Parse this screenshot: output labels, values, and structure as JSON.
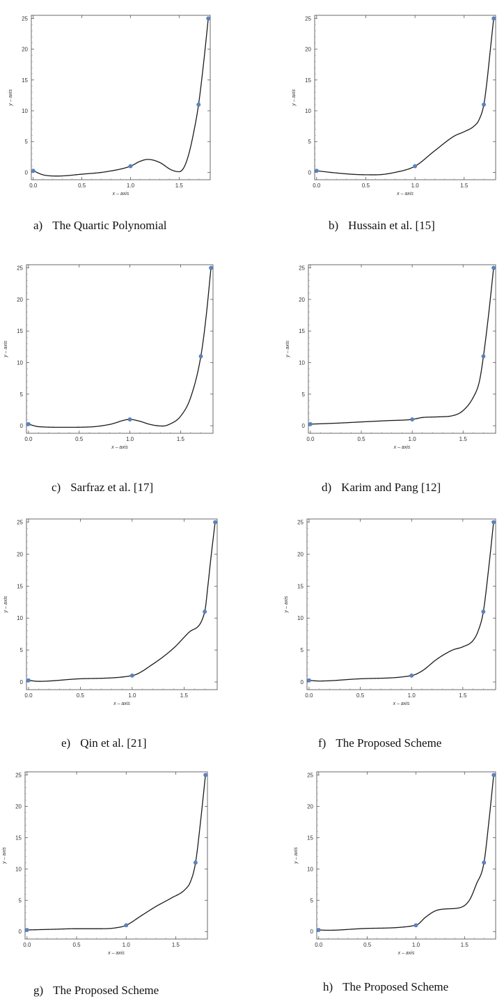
{
  "figure": {
    "data_points": {
      "x": [
        0.0,
        1.0,
        1.7,
        1.8
      ],
      "y": [
        0.25,
        1.0,
        11.0,
        25.0
      ]
    },
    "xlabel": "x – axis",
    "ylabel": "y – axis",
    "xticks": [
      "0.0",
      "0.5",
      "1.0",
      "1.5"
    ],
    "yticks": [
      "0",
      "5",
      "10",
      "15",
      "20",
      "25"
    ],
    "colors": {
      "curve": "#1a1a1a",
      "points": "#5b84c4"
    }
  },
  "chart_data": [
    {
      "type": "line",
      "panel": "a",
      "caption_letter": "a)",
      "caption_text": "The Quartic Polynomial",
      "xlim": [
        -0.02,
        1.82
      ],
      "ylim": [
        -1.2,
        25.5
      ],
      "x": [
        0.0,
        0.1,
        0.25,
        0.5,
        0.75,
        1.0,
        1.1,
        1.18,
        1.3,
        1.42,
        1.5,
        1.55,
        1.6,
        1.65,
        1.7,
        1.75,
        1.8
      ],
      "y": [
        0.25,
        -0.4,
        -0.6,
        -0.3,
        0.1,
        1.0,
        1.8,
        2.1,
        1.6,
        0.4,
        0.1,
        0.8,
        3.0,
        6.5,
        11.0,
        17.5,
        25.0
      ]
    },
    {
      "type": "line",
      "panel": "b",
      "caption_letter": "b)",
      "caption_text": "Hussain et al. [15]",
      "xlim": [
        -0.02,
        1.82
      ],
      "ylim": [
        -1.2,
        25.5
      ],
      "x": [
        0.0,
        0.2,
        0.4,
        0.6,
        0.8,
        1.0,
        1.2,
        1.4,
        1.5,
        1.6,
        1.65,
        1.7,
        1.73,
        1.76,
        1.8
      ],
      "y": [
        0.25,
        -0.1,
        -0.35,
        -0.4,
        0.0,
        1.0,
        3.5,
        5.9,
        6.6,
        7.5,
        8.5,
        11.0,
        14.5,
        19.0,
        25.0
      ]
    },
    {
      "type": "line",
      "panel": "c",
      "caption_letter": "c)",
      "caption_text": "Sarfraz et al. [17]",
      "xlim": [
        -0.02,
        1.82
      ],
      "ylim": [
        -1.2,
        25.5
      ],
      "x": [
        0.0,
        0.1,
        0.35,
        0.6,
        0.8,
        1.0,
        1.1,
        1.2,
        1.32,
        1.4,
        1.5,
        1.6,
        1.7,
        1.75,
        1.8
      ],
      "y": [
        0.25,
        -0.15,
        -0.25,
        -0.2,
        0.2,
        1.0,
        0.7,
        0.2,
        -0.05,
        0.3,
        1.5,
        4.5,
        11.0,
        17.0,
        25.0
      ]
    },
    {
      "type": "line",
      "panel": "d",
      "caption_letter": "d)",
      "caption_text": "Karim and Pang [12]",
      "xlim": [
        -0.02,
        1.82
      ],
      "ylim": [
        -1.2,
        25.5
      ],
      "x": [
        0.0,
        0.25,
        0.5,
        0.75,
        1.0,
        1.1,
        1.25,
        1.4,
        1.5,
        1.6,
        1.66,
        1.7,
        1.75,
        1.8
      ],
      "y": [
        0.25,
        0.4,
        0.6,
        0.8,
        1.0,
        1.3,
        1.4,
        1.6,
        2.4,
        4.5,
        7.0,
        11.0,
        17.5,
        25.0
      ]
    },
    {
      "type": "line",
      "panel": "e",
      "caption_letter": "e)",
      "caption_text": "Qin et al. [21]",
      "xlim": [
        -0.02,
        1.82
      ],
      "ylim": [
        -1.2,
        25.5
      ],
      "x": [
        0.0,
        0.1,
        0.5,
        1.0,
        1.2,
        1.4,
        1.55,
        1.7,
        1.73,
        1.76,
        1.8
      ],
      "y": [
        0.25,
        0.1,
        0.5,
        1.0,
        2.8,
        5.3,
        7.8,
        11.0,
        15.0,
        19.5,
        25.0
      ]
    },
    {
      "type": "line",
      "panel": "f",
      "caption_letter": "f)",
      "caption_text": "The Proposed Scheme",
      "xlim": [
        -0.02,
        1.82
      ],
      "ylim": [
        -1.2,
        25.5
      ],
      "x": [
        0.0,
        0.1,
        0.5,
        1.0,
        1.1,
        1.25,
        1.4,
        1.5,
        1.6,
        1.65,
        1.7,
        1.75,
        1.8
      ],
      "y": [
        0.25,
        0.15,
        0.5,
        1.0,
        1.7,
        3.6,
        5.0,
        5.5,
        6.5,
        8.0,
        11.0,
        17.5,
        25.0
      ]
    },
    {
      "type": "line",
      "panel": "g",
      "caption_letter": "g)",
      "caption_text": "The Proposed Scheme",
      "xlim": [
        -0.02,
        1.82
      ],
      "ylim": [
        -1.2,
        25.5
      ],
      "x": [
        0.0,
        0.25,
        0.5,
        0.75,
        0.9,
        1.0,
        1.15,
        1.3,
        1.45,
        1.6,
        1.65,
        1.7,
        1.75,
        1.8
      ],
      "y": [
        0.25,
        0.35,
        0.45,
        0.45,
        0.6,
        1.0,
        2.5,
        4.0,
        5.3,
        6.8,
        8.0,
        11.0,
        17.5,
        25.0
      ]
    },
    {
      "type": "line",
      "panel": "h",
      "caption_letter": "h)",
      "caption_text": "The Proposed Scheme",
      "xlim": [
        -0.02,
        1.82
      ],
      "ylim": [
        -1.2,
        25.5
      ],
      "x": [
        0.0,
        0.1,
        0.5,
        1.0,
        1.1,
        1.2,
        1.3,
        1.45,
        1.55,
        1.62,
        1.7,
        1.75,
        1.8
      ],
      "y": [
        0.25,
        0.2,
        0.5,
        1.0,
        2.3,
        3.3,
        3.6,
        3.8,
        5.0,
        7.5,
        11.0,
        17.5,
        25.0
      ]
    }
  ]
}
